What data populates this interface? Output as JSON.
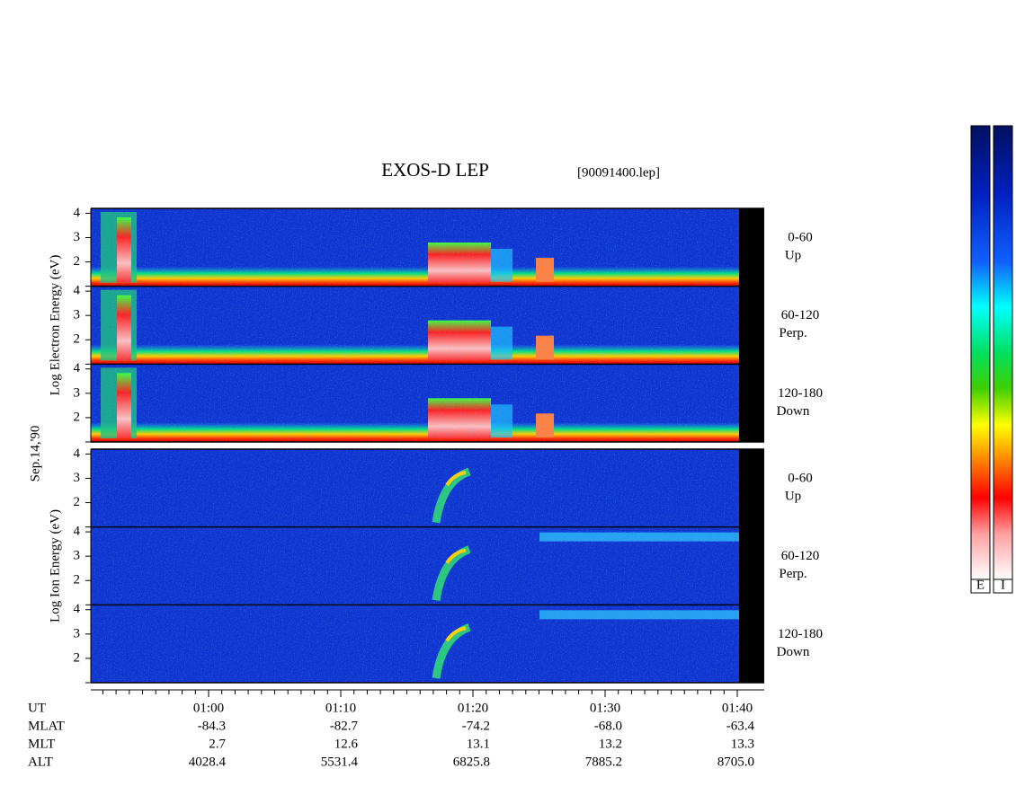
{
  "title": "EXOS-D LEP",
  "file": "[90091400.lep]",
  "date_label": "Sep.14,'90",
  "ylim": [
    1,
    4.2
  ],
  "yticks": [
    2,
    3,
    4
  ],
  "groups": [
    {
      "ylabel": "Log Electron Energy (eV)",
      "panels": [
        {
          "range": "0-60",
          "direction": "Up"
        },
        {
          "range": "60-120",
          "direction": "Perp."
        },
        {
          "range": "120-180",
          "direction": "Down"
        }
      ]
    },
    {
      "ylabel": "Log Ion Energy (eV)",
      "panels": [
        {
          "range": "0-60",
          "direction": "Up"
        },
        {
          "range": "60-120",
          "direction": "Perp."
        },
        {
          "range": "120-180",
          "direction": "Down"
        }
      ]
    }
  ],
  "ephemeris": {
    "labels": [
      "UT",
      "MLAT",
      "MLT",
      "ALT"
    ],
    "columns": [
      [
        "01:00",
        "-84.3",
        "2.7",
        "4028.4"
      ],
      [
        "01:10",
        "-82.7",
        "12.6",
        "5531.4"
      ],
      [
        "01:20",
        "-74.2",
        "13.1",
        "6825.8"
      ],
      [
        "01:30",
        "-68.0",
        "13.2",
        "7885.2"
      ],
      [
        "01:40",
        "-63.4",
        "13.3",
        "8705.0"
      ]
    ]
  },
  "colorbar_labels": [
    "E",
    "I"
  ]
}
